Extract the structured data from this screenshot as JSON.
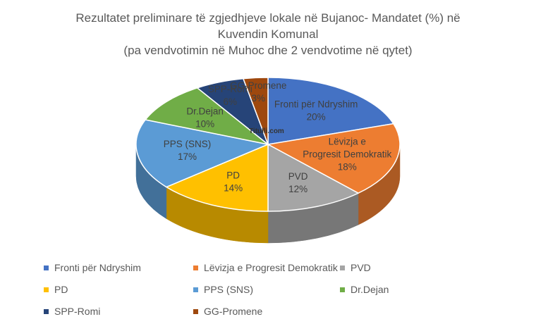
{
  "chart_data": {
    "type": "pie",
    "title_lines": [
      "Rezultatet preliminare të  zgjedhjeve lokale në Bujanoc- Mandatet (%) në",
      "Kuvendin Komunal",
      "(pa vendvotimin në Muhoc dhe 2 vendvotime në qytet)"
    ],
    "slices": [
      {
        "name": "Fronti për Ndryshim",
        "value": 20,
        "label": "20%",
        "color": "#4472C4"
      },
      {
        "name": "Lëvizja e Progresit Demokratik",
        "value": 18,
        "label": "18%",
        "color": "#ED7D31"
      },
      {
        "name": "PVD",
        "value": 12,
        "label": "12%",
        "color": "#A5A5A5"
      },
      {
        "name": "PD",
        "value": 14,
        "label": "14%",
        "color": "#FFC000"
      },
      {
        "name": "PPS (SNS)",
        "value": 17,
        "label": "17%",
        "color": "#5B9BD5"
      },
      {
        "name": "Dr.Dejan",
        "value": 10,
        "label": "10%",
        "color": "#70AD47"
      },
      {
        "name": "SPP-Romi",
        "value": 6,
        "label": "6%",
        "color": "#264478"
      },
      {
        "name": "GG-Promene",
        "value": 3,
        "label": "3%",
        "color": "#9E480E"
      }
    ],
    "legend_position": "bottom"
  },
  "watermark": "Titulli.com"
}
